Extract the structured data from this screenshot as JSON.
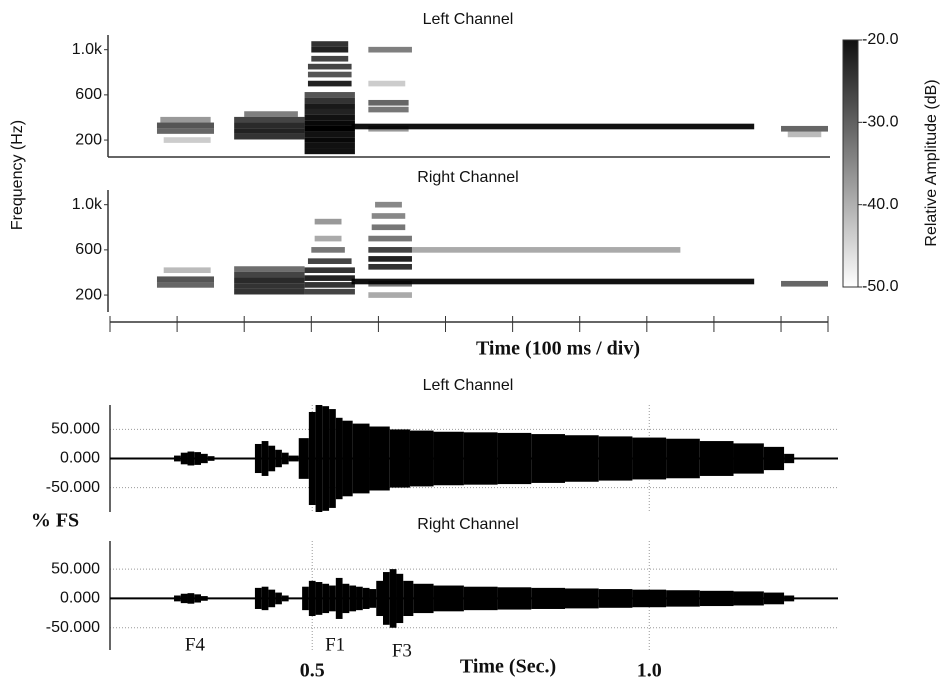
{
  "chart_data": [
    {
      "type": "heatmap",
      "title": "Left Channel",
      "ylabel": "Frequency (Hz)",
      "xlim": [
        0,
        1070
      ],
      "ylim": [
        50,
        1130
      ],
      "yticks": [
        200,
        600,
        {
          "value": 1000,
          "label": "1.0k"
        }
      ],
      "cells": [
        [
          70,
          155,
          280,
          -32
        ],
        [
          70,
          155,
          330,
          -30
        ],
        [
          75,
          150,
          380,
          -38
        ],
        [
          80,
          150,
          200,
          -44
        ],
        [
          185,
          290,
          230,
          -26
        ],
        [
          185,
          290,
          280,
          -24
        ],
        [
          185,
          290,
          330,
          -25
        ],
        [
          185,
          290,
          380,
          -28
        ],
        [
          200,
          280,
          430,
          -35
        ],
        [
          290,
          365,
          100,
          -22
        ],
        [
          290,
          365,
          150,
          -22
        ],
        [
          290,
          365,
          200,
          -21
        ],
        [
          290,
          365,
          250,
          -22
        ],
        [
          290,
          365,
          300,
          -20
        ],
        [
          290,
          365,
          350,
          -21
        ],
        [
          290,
          365,
          400,
          -22
        ],
        [
          290,
          365,
          450,
          -24
        ],
        [
          290,
          365,
          500,
          -23
        ],
        [
          290,
          365,
          550,
          -26
        ],
        [
          290,
          365,
          600,
          -30
        ],
        [
          295,
          360,
          700,
          -24
        ],
        [
          295,
          360,
          780,
          -30
        ],
        [
          295,
          360,
          850,
          -28
        ],
        [
          300,
          355,
          920,
          -28
        ],
        [
          300,
          355,
          1000,
          -24
        ],
        [
          300,
          355,
          1050,
          -26
        ],
        [
          385,
          450,
          1000,
          -35
        ],
        [
          385,
          445,
          530,
          -32
        ],
        [
          385,
          445,
          470,
          -34
        ],
        [
          385,
          445,
          300,
          -38
        ],
        [
          385,
          440,
          700,
          -44
        ],
        [
          360,
          960,
          320,
          -22
        ],
        [
          1000,
          1070,
          300,
          -32
        ],
        [
          1010,
          1060,
          250,
          -42
        ]
      ],
      "colorbar": {
        "label": "Relative Amplitude (dB)",
        "lim": [
          -50,
          -20
        ],
        "ticks": [
          {
            "value": -20,
            "label": "-20.0"
          },
          {
            "value": -30,
            "label": "-30.0"
          },
          {
            "value": -40,
            "label": "-40.0"
          },
          {
            "value": -50,
            "label": "-50.0"
          }
        ]
      }
    },
    {
      "type": "heatmap",
      "title": "Right Channel",
      "xlabel": "Time (100 ms / div)",
      "xlim": [
        0,
        1070
      ],
      "ylim": [
        50,
        1130
      ],
      "yticks": [
        200,
        600,
        {
          "value": 1000,
          "label": "1.0k"
        }
      ],
      "xticks": [
        100,
        200,
        300,
        400,
        500,
        600,
        700,
        800,
        900,
        1000
      ],
      "cells": [
        [
          70,
          155,
          290,
          -32
        ],
        [
          70,
          155,
          340,
          -30
        ],
        [
          80,
          150,
          420,
          -42
        ],
        [
          185,
          290,
          230,
          -26
        ],
        [
          185,
          290,
          280,
          -26
        ],
        [
          185,
          290,
          330,
          -25
        ],
        [
          185,
          290,
          380,
          -28
        ],
        [
          185,
          290,
          430,
          -33
        ],
        [
          290,
          365,
          230,
          -28
        ],
        [
          290,
          365,
          290,
          -26
        ],
        [
          290,
          365,
          350,
          -24
        ],
        [
          290,
          365,
          420,
          -26
        ],
        [
          295,
          360,
          500,
          -28
        ],
        [
          300,
          350,
          600,
          -34
        ],
        [
          305,
          345,
          700,
          -40
        ],
        [
          305,
          345,
          850,
          -38
        ],
        [
          385,
          450,
          200,
          -40
        ],
        [
          385,
          450,
          300,
          -34
        ],
        [
          385,
          450,
          450,
          -26
        ],
        [
          385,
          450,
          520,
          -24
        ],
        [
          385,
          450,
          600,
          -28
        ],
        [
          385,
          450,
          700,
          -34
        ],
        [
          390,
          440,
          800,
          -34
        ],
        [
          390,
          440,
          900,
          -36
        ],
        [
          395,
          435,
          1000,
          -36
        ],
        [
          360,
          960,
          320,
          -22
        ],
        [
          450,
          850,
          600,
          -40
        ],
        [
          1000,
          1070,
          300,
          -32
        ]
      ]
    },
    {
      "type": "waveform",
      "title": "Left Channel",
      "ylabel": "% FS",
      "xlim": [
        0.2,
        1.28
      ],
      "ylim": [
        -92,
        92
      ],
      "grid": true,
      "yticks": [
        {
          "value": 50,
          "label": "50.000"
        },
        {
          "value": 0,
          "label": "0.000"
        },
        {
          "value": -50,
          "label": "-50.000"
        }
      ],
      "x": [
        0.3,
        0.31,
        0.32,
        0.33,
        0.34,
        0.35,
        0.38,
        0.42,
        0.43,
        0.44,
        0.45,
        0.46,
        0.47,
        0.49,
        0.5,
        0.51,
        0.52,
        0.53,
        0.54,
        0.55,
        0.57,
        0.6,
        0.63,
        0.66,
        0.7,
        0.75,
        0.8,
        0.85,
        0.9,
        0.95,
        1.0,
        1.05,
        1.1,
        1.15,
        1.19,
        1.21
      ],
      "values": [
        5,
        10,
        12,
        11,
        8,
        4,
        null,
        25,
        30,
        22,
        15,
        10,
        5,
        35,
        80,
        92,
        90,
        85,
        70,
        65,
        60,
        55,
        50,
        48,
        46,
        45,
        44,
        42,
        40,
        38,
        36,
        34,
        30,
        26,
        20,
        8
      ]
    },
    {
      "type": "waveform",
      "title": "Right Channel",
      "xlabel": "Time (Sec.)",
      "xlim": [
        0.2,
        1.28
      ],
      "ylim": [
        -88,
        98
      ],
      "grid": true,
      "yticks": [
        {
          "value": 50,
          "label": "50.000"
        },
        {
          "value": 0,
          "label": "0.000"
        },
        {
          "value": -50,
          "label": "-50.000"
        }
      ],
      "xticks": [
        0.5,
        {
          "value": 1,
          "label": "1.0"
        }
      ],
      "annotations": [
        {
          "text": "F4",
          "x": 0.326
        },
        {
          "text": "F1",
          "x": 0.534
        },
        {
          "text": "F3",
          "x": 0.633
        }
      ],
      "x": [
        0.3,
        0.31,
        0.32,
        0.33,
        0.34,
        0.38,
        0.42,
        0.43,
        0.44,
        0.45,
        0.46,
        0.48,
        0.49,
        0.5,
        0.51,
        0.52,
        0.53,
        0.54,
        0.55,
        0.56,
        0.57,
        0.58,
        0.59,
        0.6,
        0.61,
        0.62,
        0.63,
        0.64,
        0.66,
        0.7,
        0.75,
        0.8,
        0.85,
        0.9,
        0.95,
        1.0,
        1.05,
        1.1,
        1.15,
        1.19,
        1.21
      ],
      "values": [
        5,
        8,
        9,
        7,
        4,
        null,
        18,
        20,
        15,
        10,
        5,
        null,
        20,
        30,
        28,
        25,
        22,
        35,
        25,
        22,
        20,
        18,
        16,
        30,
        45,
        50,
        42,
        30,
        25,
        22,
        20,
        19,
        18,
        17,
        16,
        15,
        14,
        13,
        12,
        10,
        5
      ]
    }
  ]
}
